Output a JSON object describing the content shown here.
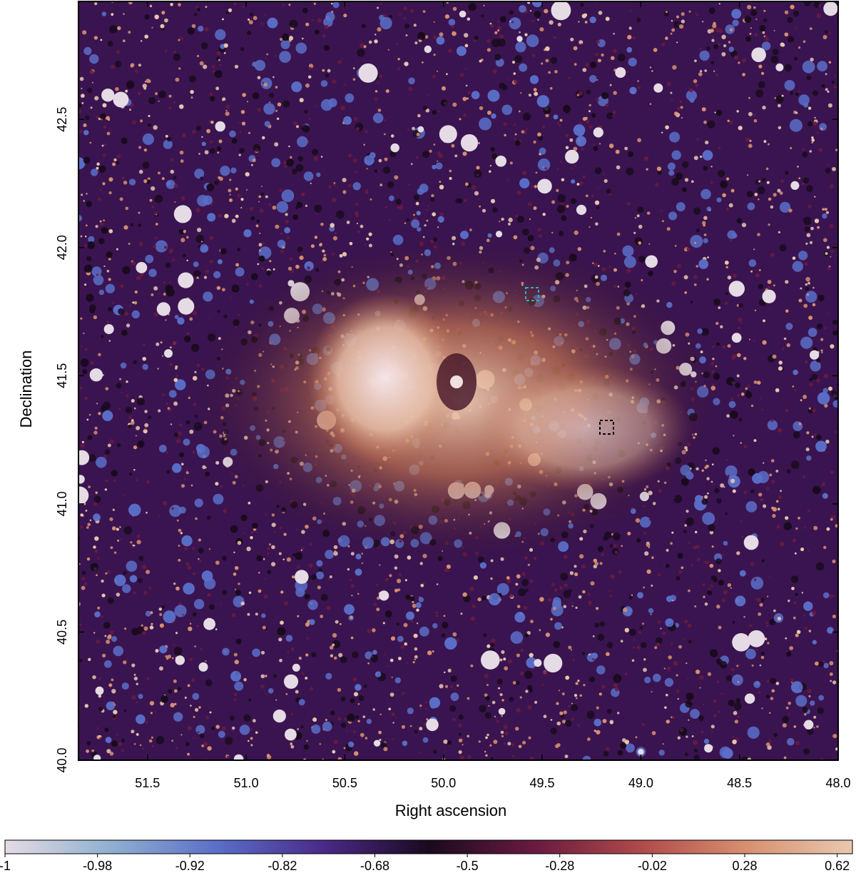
{
  "chart_data": {
    "type": "image",
    "xlabel": "Right ascension",
    "ylabel": "Declination",
    "xlim": [
      51.85,
      48.0
    ],
    "xticks": [
      51.5,
      {
        "value": 51,
        "label": "51.0"
      },
      50.5,
      {
        "value": 50,
        "label": "50.0"
      },
      49.5,
      {
        "value": 49,
        "label": "49.0"
      },
      48.5,
      {
        "value": 48,
        "label": "48.0"
      }
    ],
    "ylim": [
      40.0,
      42.96
    ],
    "yticks": [
      {
        "value": 40,
        "label": "40.0"
      },
      40.5,
      {
        "value": 41,
        "label": "41.0"
      },
      41.5,
      {
        "value": 42,
        "label": "42.0"
      },
      42.5
    ],
    "colormap": [
      "#e4dbe4",
      "#8fb0d0",
      "#5a6fc8",
      "#4a2a8a",
      "#1a0a1e",
      "#6a1a40",
      "#b04a4a",
      "#d89070",
      "#e8c8b0"
    ],
    "colorbar": {
      "scale": "sqrt",
      "lim": [
        -1,
        0.68
      ],
      "ticks": [
        -1,
        -0.98,
        -0.92,
        -0.82,
        -0.68,
        -0.5,
        -0.28,
        -0.02,
        0.28,
        0.62
      ]
    }
  }
}
